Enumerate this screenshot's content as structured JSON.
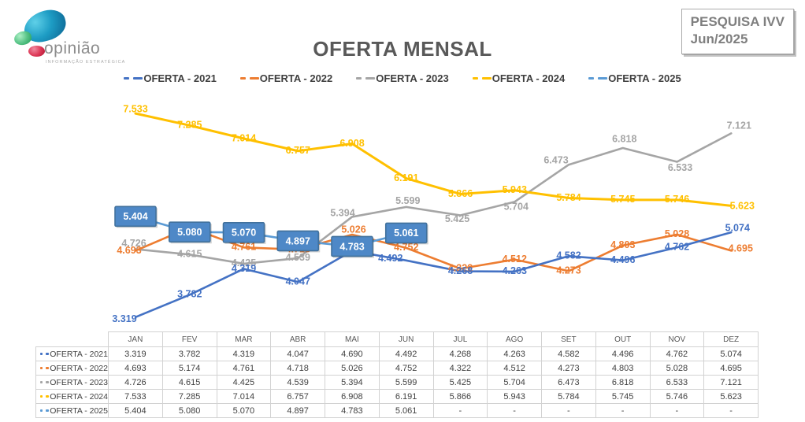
{
  "logo": {
    "name": "opinião",
    "tagline": "INFORMAÇÃO ESTRATÉGICA"
  },
  "header": {
    "title": "OFERTA MENSAL",
    "badge_line1": "PESQUISA IVV",
    "badge_line2": "Jun/2025"
  },
  "chart_data": {
    "type": "line",
    "title": "OFERTA MENSAL",
    "categories": [
      "JAN",
      "FEV",
      "MAR",
      "ABR",
      "MAI",
      "JUN",
      "JUL",
      "AGO",
      "SET",
      "OUT",
      "NOV",
      "DEZ"
    ],
    "series": [
      {
        "name": "OFERTA - 2021",
        "color": "#4472C4",
        "values": [
          3319,
          3782,
          4319,
          4047,
          4690,
          4492,
          4268,
          4263,
          4582,
          4496,
          4762,
          5074
        ]
      },
      {
        "name": "OFERTA - 2022",
        "color": "#ED7D31",
        "values": [
          4693,
          5174,
          4761,
          4718,
          5026,
          4752,
          4322,
          4512,
          4273,
          4803,
          5028,
          4695
        ]
      },
      {
        "name": "OFERTA - 2023",
        "color": "#A5A5A5",
        "values": [
          4726,
          4615,
          4425,
          4539,
          5394,
          5599,
          5425,
          5704,
          6473,
          6818,
          6533,
          7121
        ]
      },
      {
        "name": "OFERTA - 2024",
        "color": "#FFC000",
        "values": [
          7533,
          7285,
          7014,
          6757,
          6908,
          6191,
          5866,
          5943,
          5784,
          5745,
          5746,
          5623
        ]
      },
      {
        "name": "OFERTA - 2025",
        "color": "#5B9BD5",
        "values": [
          5404,
          5080,
          5070,
          4897,
          4783,
          5061,
          null,
          null,
          null,
          null,
          null,
          null
        ],
        "label_style": "boxed",
        "box_fill": "#4E88C7",
        "box_border": "#41719C",
        "box_text": "#FFFFFF"
      }
    ],
    "ylim": [
      3000,
      7800
    ],
    "xlabel": "",
    "ylabel": "",
    "grid": false,
    "legend_position": "top",
    "value_format": "thousands-dot"
  },
  "table": {
    "corner": "",
    "headers": [
      "JAN",
      "FEV",
      "MAR",
      "ABR",
      "MAI",
      "JUN",
      "JUL",
      "AGO",
      "SET",
      "OUT",
      "NOV",
      "DEZ"
    ],
    "rows": [
      {
        "label": "OFERTA - 2021",
        "color": "#4472C4",
        "values": [
          "3.319",
          "3.782",
          "4.319",
          "4.047",
          "4.690",
          "4.492",
          "4.268",
          "4.263",
          "4.582",
          "4.496",
          "4.762",
          "5.074"
        ]
      },
      {
        "label": "OFERTA - 2022",
        "color": "#ED7D31",
        "values": [
          "4.693",
          "5.174",
          "4.761",
          "4.718",
          "5.026",
          "4.752",
          "4.322",
          "4.512",
          "4.273",
          "4.803",
          "5.028",
          "4.695"
        ]
      },
      {
        "label": "OFERTA - 2023",
        "color": "#A5A5A5",
        "values": [
          "4.726",
          "4.615",
          "4.425",
          "4.539",
          "5.394",
          "5.599",
          "5.425",
          "5.704",
          "6.473",
          "6.818",
          "6.533",
          "7.121"
        ]
      },
      {
        "label": "OFERTA - 2024",
        "color": "#FFC000",
        "values": [
          "7.533",
          "7.285",
          "7.014",
          "6.757",
          "6.908",
          "6.191",
          "5.866",
          "5.943",
          "5.784",
          "5.745",
          "5.746",
          "5.623"
        ]
      },
      {
        "label": "OFERTA - 2025",
        "color": "#5B9BD5",
        "values": [
          "5.404",
          "5.080",
          "5.070",
          "4.897",
          "4.783",
          "5.061",
          "-",
          "-",
          "-",
          "-",
          "-",
          "-"
        ]
      }
    ]
  }
}
